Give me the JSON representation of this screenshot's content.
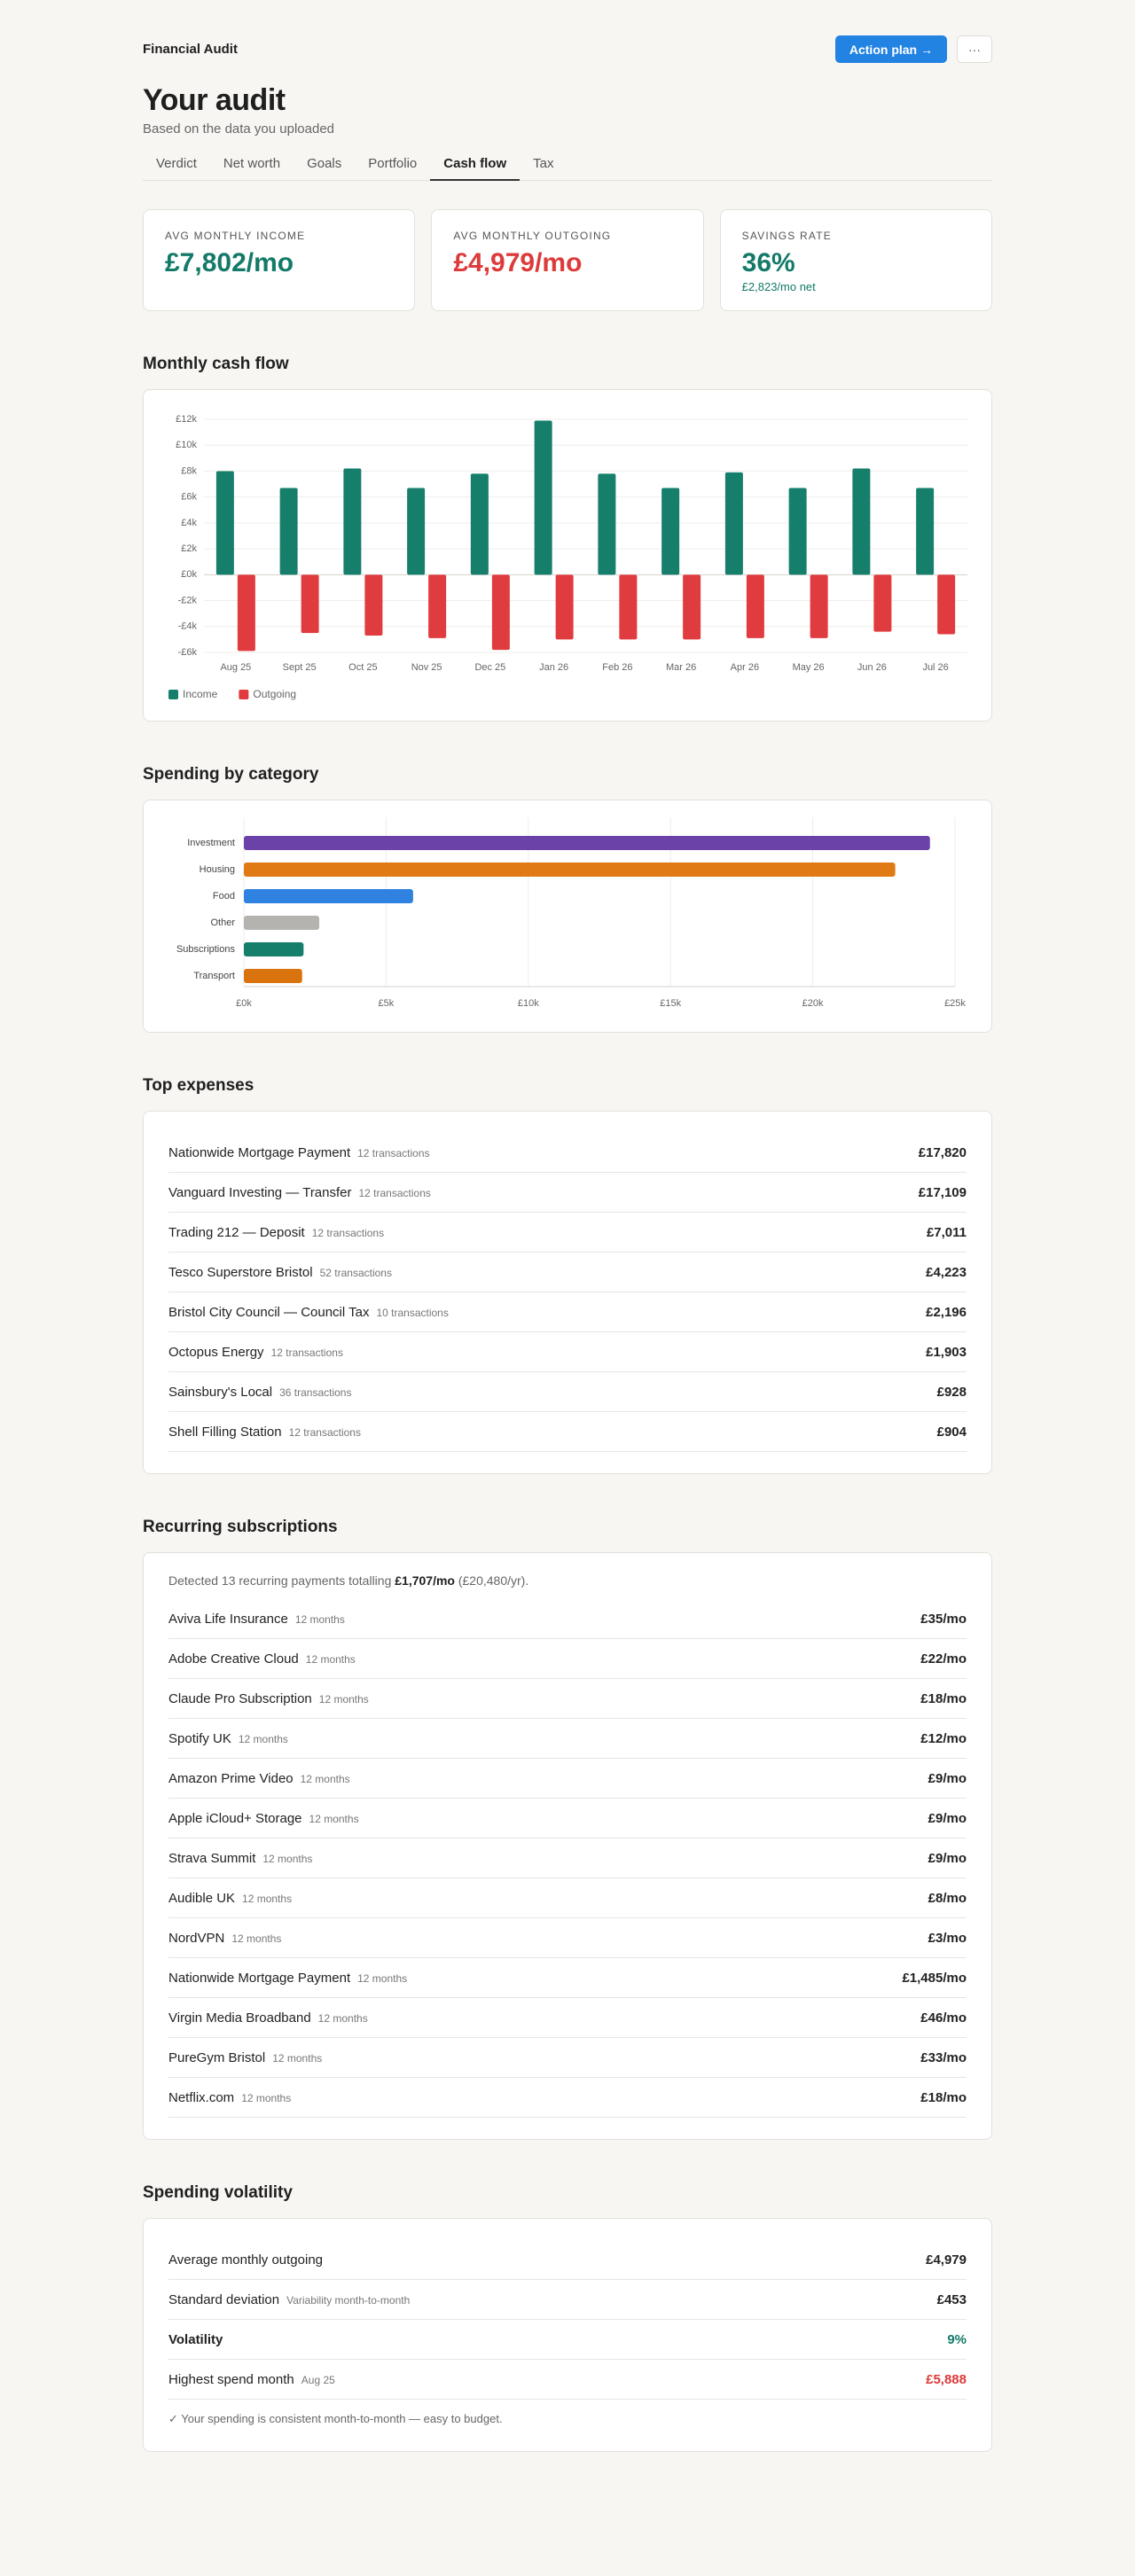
{
  "header": {
    "app_name": "Financial Audit",
    "action_button": "Action plan →",
    "menu_button": "···",
    "title": "Your audit",
    "subtitle": "Based on the data you uploaded"
  },
  "tabs": {
    "items": [
      "Verdict",
      "Net worth",
      "Goals",
      "Portfolio",
      "Cash flow",
      "Tax"
    ],
    "active": 4
  },
  "kpis": [
    {
      "label": "AVG MONTHLY INCOME",
      "value": "£7,802/mo",
      "color": "#137a68"
    },
    {
      "label": "AVG MONTHLY OUTGOING",
      "value": "£4,979/mo",
      "color": "#dd3b3b"
    },
    {
      "label": "SAVINGS RATE",
      "value": "36%",
      "note": "£2,823/mo net",
      "color": "#137a68"
    }
  ],
  "cash_flow": {
    "heading": "Monthly cash flow",
    "chart": {
      "type": "bar",
      "categories": [
        "Aug 25",
        "Sept 25",
        "Oct 25",
        "Nov 25",
        "Dec 25",
        "Jan 26",
        "Feb 26",
        "Mar 26",
        "Apr 26",
        "May 26",
        "Jun 26",
        "Jul 26"
      ],
      "series": [
        {
          "name": "Income",
          "color": "#167f6c",
          "values": [
            8000,
            6700,
            8200,
            6700,
            7800,
            11900,
            7800,
            6700,
            7900,
            6700,
            8200,
            6700
          ]
        },
        {
          "name": "Outgoing",
          "color": "#e03b3f",
          "values": [
            -5888,
            -4500,
            -4700,
            -4900,
            -5800,
            -5000,
            -5000,
            -5000,
            -4900,
            -4900,
            -4400,
            -4600
          ]
        }
      ],
      "ylim": [
        -6000,
        12000
      ],
      "yticks": [
        {
          "value": -6000,
          "label": "-£6k"
        },
        {
          "value": -4000,
          "label": "-£4k"
        },
        {
          "value": -2000,
          "label": "-£2k"
        },
        {
          "value": 0,
          "label": "£0k"
        },
        {
          "value": 2000,
          "label": "£2k"
        },
        {
          "value": 4000,
          "label": "£4k"
        },
        {
          "value": 6000,
          "label": "£6k"
        },
        {
          "value": 8000,
          "label": "£8k"
        },
        {
          "value": 10000,
          "label": "£10k"
        },
        {
          "value": 12000,
          "label": "£12k"
        }
      ],
      "grid": true,
      "legend": "bottom-left"
    }
  },
  "spending": {
    "heading": "Spending by category",
    "chart": {
      "type": "bar",
      "horizontal": true,
      "categories": [
        "Investment",
        "Housing",
        "Food",
        "Other",
        "Subscriptions",
        "Transport"
      ],
      "values": [
        24120,
        22900,
        5950,
        2650,
        2100,
        2050
      ],
      "colors": [
        "#6a42a8",
        "#e07a14",
        "#2f82e0",
        "#b5b3b0",
        "#167f6c",
        "#d9730d"
      ],
      "xlim": [
        0,
        25000
      ],
      "xticks": [
        {
          "value": 0,
          "label": "£0k"
        },
        {
          "value": 5000,
          "label": "£5k"
        },
        {
          "value": 10000,
          "label": "£10k"
        },
        {
          "value": 15000,
          "label": "£15k"
        },
        {
          "value": 20000,
          "label": "£20k"
        },
        {
          "value": 25000,
          "label": "£25k"
        }
      ],
      "grid": true
    }
  },
  "top_expenses": {
    "heading": "Top expenses",
    "rows": [
      {
        "name": "Nationwide Mortgage Payment",
        "detail": "12 transactions",
        "value": "£17,820"
      },
      {
        "name": "Vanguard Investing — Transfer",
        "detail": "12 transactions",
        "value": "£17,109"
      },
      {
        "name": "Trading 212 — Deposit",
        "detail": "12 transactions",
        "value": "£7,011"
      },
      {
        "name": "Tesco Superstore Bristol",
        "detail": "52 transactions",
        "value": "£4,223"
      },
      {
        "name": "Bristol City Council — Council Tax",
        "detail": "10 transactions",
        "value": "£2,196"
      },
      {
        "name": "Octopus Energy",
        "detail": "12 transactions",
        "value": "£1,903"
      },
      {
        "name": "Sainsbury's Local",
        "detail": "36 transactions",
        "value": "£928"
      },
      {
        "name": "Shell Filling Station",
        "detail": "12 transactions",
        "value": "£904"
      }
    ]
  },
  "subscriptions": {
    "heading": "Recurring subscriptions",
    "intro": {
      "text": "Detected 13 recurring payments totalling",
      "total": "£1,707/mo",
      "yearly": "(£20,480/yr)."
    },
    "rows": [
      {
        "name": "Aviva Life Insurance",
        "detail": "12 months",
        "value": "£35/mo"
      },
      {
        "name": "Adobe Creative Cloud",
        "detail": "12 months",
        "value": "£22/mo"
      },
      {
        "name": "Claude Pro Subscription",
        "detail": "12 months",
        "value": "£18/mo"
      },
      {
        "name": "Spotify UK",
        "detail": "12 months",
        "value": "£12/mo"
      },
      {
        "name": "Amazon Prime Video",
        "detail": "12 months",
        "value": "£9/mo"
      },
      {
        "name": "Apple iCloud+ Storage",
        "detail": "12 months",
        "value": "£9/mo"
      },
      {
        "name": "Strava Summit",
        "detail": "12 months",
        "value": "£9/mo"
      },
      {
        "name": "Audible UK",
        "detail": "12 months",
        "value": "£8/mo"
      },
      {
        "name": "NordVPN",
        "detail": "12 months",
        "value": "£3/mo"
      },
      {
        "name": "Nationwide Mortgage Payment",
        "detail": "12 months",
        "value": "£1,485/mo"
      },
      {
        "name": "Virgin Media Broadband",
        "detail": "12 months",
        "value": "£46/mo"
      },
      {
        "name": "PureGym Bristol",
        "detail": "12 months",
        "value": "£33/mo"
      },
      {
        "name": "Netflix.com",
        "detail": "12 months",
        "value": "£18/mo"
      }
    ]
  },
  "volatility": {
    "heading": "Spending volatility",
    "rows": [
      {
        "name": "Average monthly outgoing",
        "value": "£4,979"
      },
      {
        "name": "Standard deviation",
        "detail": "Variability month-to-month",
        "value": "£453"
      },
      {
        "name": "Volatility",
        "value": "9%",
        "emphasis": true,
        "color": "#137a68"
      },
      {
        "name": "Highest spend month",
        "detail": "Aug 25",
        "value": "£5,888",
        "color": "#dd3b3b"
      }
    ],
    "note": "✓ Your spending is consistent month-to-month — easy to budget."
  }
}
